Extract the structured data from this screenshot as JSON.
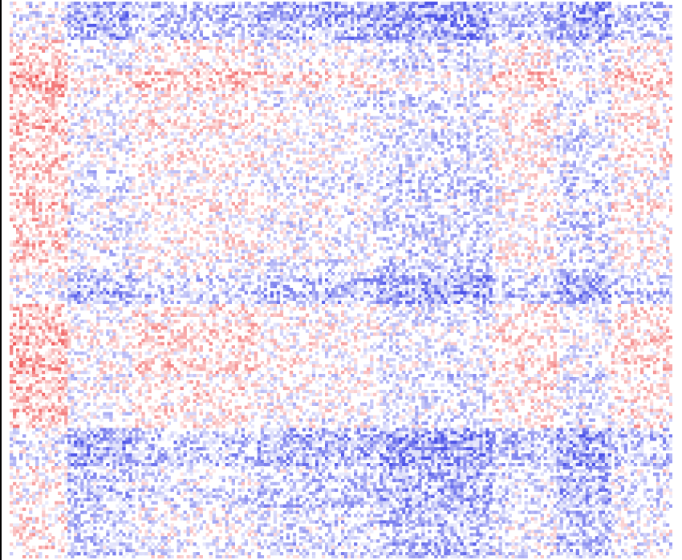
{
  "chart_data": {
    "type": "heatmap",
    "title": "",
    "xlabel": "",
    "ylabel": "",
    "grid": false,
    "legend": "none",
    "color_scale": {
      "negative": "#4b52e8",
      "zero": "#ffffff",
      "positive": "#ef4a4a",
      "range": [
        -1,
        1
      ]
    },
    "rows": 175,
    "cols": 206,
    "row_blocks": [
      {
        "from": 0,
        "to": 12,
        "level": -0.45
      },
      {
        "from": 12,
        "to": 22,
        "level": 0.05
      },
      {
        "from": 22,
        "to": 28,
        "level": 0.35
      },
      {
        "from": 28,
        "to": 52,
        "level": 0.05
      },
      {
        "from": 52,
        "to": 86,
        "level": 0.0
      },
      {
        "from": 86,
        "to": 95,
        "level": -0.4
      },
      {
        "from": 95,
        "to": 116,
        "level": 0.15
      },
      {
        "from": 116,
        "to": 134,
        "level": 0.1
      },
      {
        "from": 134,
        "to": 146,
        "level": -0.45
      },
      {
        "from": 146,
        "to": 175,
        "level": -0.2
      }
    ],
    "col_blocks": [
      {
        "from": 0,
        "to": 18,
        "level": 0.4
      },
      {
        "from": 18,
        "to": 38,
        "level": -0.2
      },
      {
        "from": 38,
        "to": 77,
        "level": 0.1
      },
      {
        "from": 77,
        "to": 97,
        "level": -0.1
      },
      {
        "from": 97,
        "to": 115,
        "level": -0.15
      },
      {
        "from": 115,
        "to": 150,
        "level": -0.35
      },
      {
        "from": 150,
        "to": 170,
        "level": 0.05
      },
      {
        "from": 170,
        "to": 187,
        "level": -0.3
      },
      {
        "from": 187,
        "to": 206,
        "level": 0.1
      }
    ],
    "seed": 7
  }
}
